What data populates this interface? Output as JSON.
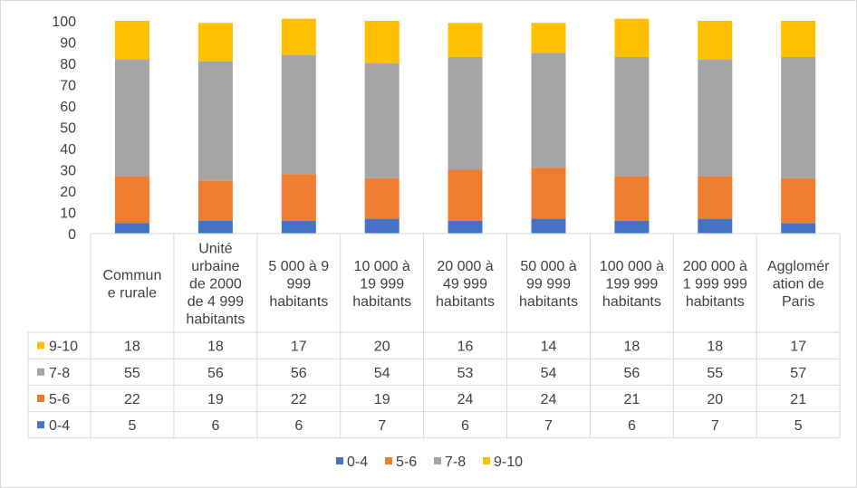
{
  "chart_data": {
    "type": "bar",
    "stacked": true,
    "ylim": [
      0,
      100
    ],
    "yticks": [
      0,
      10,
      20,
      30,
      40,
      50,
      60,
      70,
      80,
      90,
      100
    ],
    "grid": false,
    "legend_position": "bottom",
    "data_table": true,
    "categories": [
      [
        "Commun",
        "e rurale"
      ],
      [
        "Unité",
        "urbaine",
        "de 2000",
        "de 4 999",
        "habitants"
      ],
      [
        "5 000 à 9",
        "999",
        "habitants"
      ],
      [
        "10 000 à",
        "19 999",
        "habitants"
      ],
      [
        "20 000 à",
        "49 999",
        "habitants"
      ],
      [
        "50 000 à",
        "99 999",
        "habitants"
      ],
      [
        "100 000 à",
        "199 999",
        "habitants"
      ],
      [
        "200 000 à",
        "1 999 999",
        "habitants"
      ],
      [
        "Agglomér",
        "ation de",
        "Paris"
      ]
    ],
    "series": [
      {
        "name": "0-4",
        "color": "#4472C4",
        "values": [
          5,
          6,
          6,
          7,
          6,
          7,
          6,
          7,
          5
        ]
      },
      {
        "name": "5-6",
        "color": "#ED7D31",
        "values": [
          22,
          19,
          22,
          19,
          24,
          24,
          21,
          20,
          21
        ]
      },
      {
        "name": "7-8",
        "color": "#A5A5A5",
        "values": [
          55,
          56,
          56,
          54,
          53,
          54,
          56,
          55,
          57
        ]
      },
      {
        "name": "9-10",
        "color": "#FFC000",
        "values": [
          18,
          18,
          17,
          20,
          16,
          14,
          18,
          18,
          17
        ]
      }
    ]
  }
}
